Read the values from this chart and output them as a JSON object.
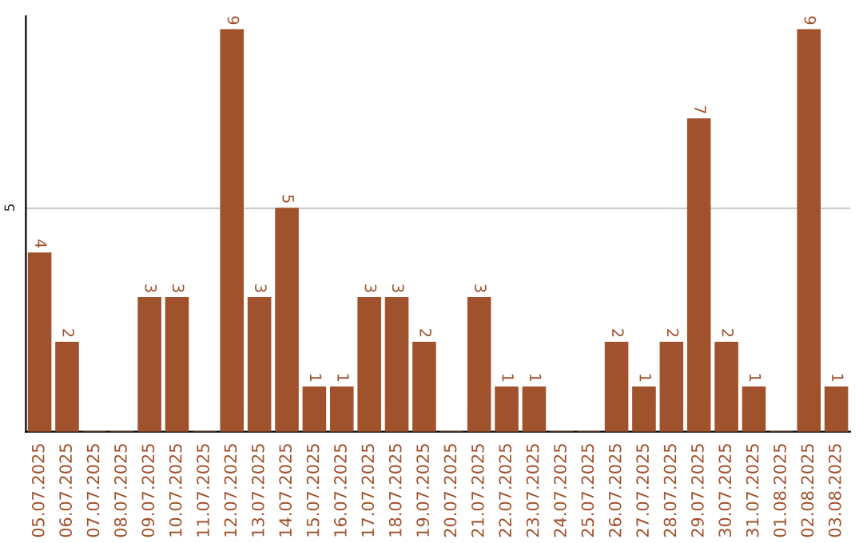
{
  "chart_data": {
    "type": "bar",
    "categories": [
      "05.07.2025",
      "06.07.2025",
      "07.07.2025",
      "08.07.2025",
      "09.07.2025",
      "10.07.2025",
      "11.07.2025",
      "12.07.2025",
      "13.07.2025",
      "14.07.2025",
      "15.07.2025",
      "16.07.2025",
      "17.07.2025",
      "18.07.2025",
      "19.07.2025",
      "20.07.2025",
      "21.07.2025",
      "22.07.2025",
      "23.07.2025",
      "24.07.2025",
      "25.07.2025",
      "26.07.2025",
      "27.07.2025",
      "28.07.2025",
      "29.07.2025",
      "30.07.2025",
      "31.07.2025",
      "01.08.2025",
      "02.08.2025",
      "03.08.2025"
    ],
    "values": [
      4,
      2,
      0,
      0,
      3,
      3,
      0,
      9,
      3,
      5,
      1,
      1,
      3,
      3,
      2,
      0,
      3,
      1,
      1,
      0,
      0,
      2,
      1,
      2,
      7,
      2,
      1,
      0,
      9,
      1
    ],
    "value_labels": [
      "4",
      "2",
      null,
      null,
      "3",
      "3",
      null,
      "9",
      "3",
      "5",
      "1",
      "1",
      "3",
      "3",
      "2",
      null,
      "3",
      "1",
      "1",
      null,
      null,
      "2",
      "1",
      "2",
      "7",
      "2",
      "1",
      null,
      "9",
      "1"
    ],
    "color": "#a0522d",
    "ylim": [
      0,
      9.3
    ],
    "yticks": [
      5
    ],
    "grid": "y"
  }
}
